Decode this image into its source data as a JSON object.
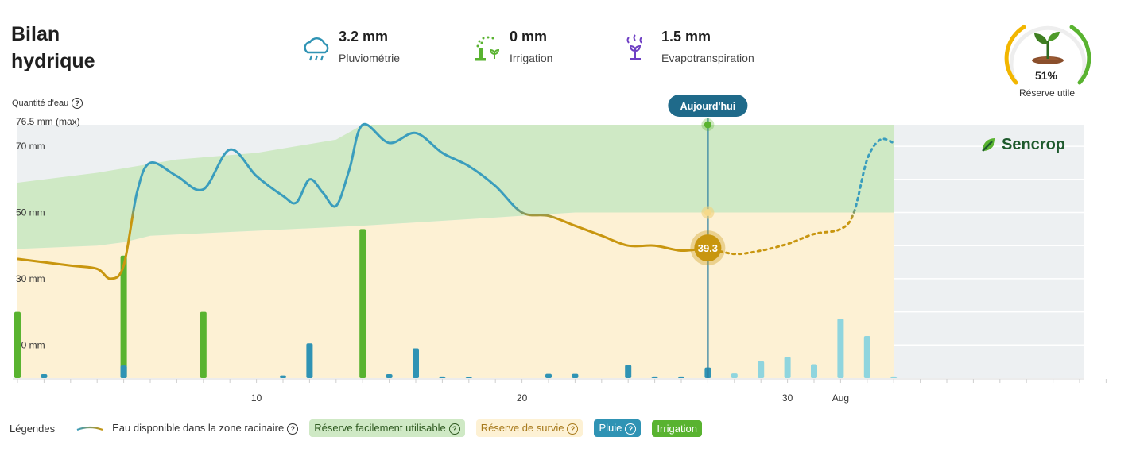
{
  "header": {
    "title": "Bilan hydrique",
    "stats": [
      {
        "icon": "rain-cloud-icon",
        "value": "3.2 mm",
        "label": "Pluviométrie"
      },
      {
        "icon": "sprinkler-icon",
        "value": "0 mm",
        "label": "Irrigation"
      },
      {
        "icon": "evapotranspiration-icon",
        "value": "1.5 mm",
        "label": "Evapotranspiration"
      }
    ]
  },
  "gauge": {
    "percent": "51%",
    "value": 0.51,
    "label": "Réserve utile",
    "icon": "plant-sprout-icon"
  },
  "brand": {
    "name": "Sencrop",
    "icon": "sencrop-leaf-icon"
  },
  "today_label": "Aujourd'hui",
  "today_value": "39.3",
  "y_axis_title": "Quantité d'eau",
  "legend": {
    "title": "Légendes",
    "items": [
      {
        "label": "Eau disponible dans la zone racinaire",
        "kind": "line"
      },
      {
        "label": "Réserve facilement utilisable",
        "kind": "pill",
        "bg": "#cfe9c5",
        "fg": "#2f5a21"
      },
      {
        "label": "Réserve de survie",
        "kind": "pill",
        "bg": "#fdf1d4",
        "fg": "#a7791b"
      },
      {
        "label": "Pluie",
        "kind": "pill",
        "bg": "#2f93b4",
        "fg": "#ffffff"
      },
      {
        "label": "Irrigation",
        "kind": "pill",
        "bg": "#59b330",
        "fg": "#ffffff"
      }
    ]
  },
  "colors": {
    "ru_zone": "#cfe9c5",
    "survival_zone": "#fdf1d4",
    "rain": "#2f93b4",
    "rain_forecast": "#8fd5de",
    "irrigation": "#59b330",
    "line_ok": "#3a9dbd",
    "line_low": "#c8960f",
    "grey_bg": "#edf0f2"
  },
  "chart_data": {
    "type": "line",
    "x_unit": "day",
    "x_range": [
      1,
      42
    ],
    "today": 27,
    "forecast_end": 34,
    "x_tick_labels": [
      {
        "x": 10,
        "label": "10"
      },
      {
        "x": 20,
        "label": "20"
      },
      {
        "x": 30,
        "label": "30"
      },
      {
        "x": 32,
        "label": "Aug"
      }
    ],
    "y_range": [
      0,
      76.5
    ],
    "y_tick_labels": [
      {
        "y": 10,
        "label": "10 mm"
      },
      {
        "y": 30,
        "label": "30 mm"
      },
      {
        "y": 50,
        "label": "50 mm"
      },
      {
        "y": 70,
        "label": "70 mm"
      },
      {
        "y": 76.5,
        "label": "76.5 mm (max)"
      }
    ],
    "survival_threshold": 50,
    "ru_upper": [
      [
        1,
        59
      ],
      [
        4,
        62
      ],
      [
        7,
        66
      ],
      [
        10,
        68
      ],
      [
        13,
        72
      ],
      [
        14,
        76.5
      ],
      [
        34,
        76.5
      ]
    ],
    "ru_lower": [
      [
        1,
        39
      ],
      [
        4,
        40
      ],
      [
        5,
        41
      ],
      [
        6,
        43
      ],
      [
        10,
        44.5
      ],
      [
        14,
        46
      ],
      [
        18,
        48
      ],
      [
        20,
        49
      ],
      [
        22,
        50
      ],
      [
        34,
        50
      ]
    ],
    "water_line_observed": [
      [
        1,
        36
      ],
      [
        3,
        34
      ],
      [
        4,
        33
      ],
      [
        4.5,
        30
      ],
      [
        5,
        34
      ],
      [
        5.5,
        56
      ],
      [
        6,
        65
      ],
      [
        7,
        61
      ],
      [
        8,
        57
      ],
      [
        9,
        69
      ],
      [
        10,
        61
      ],
      [
        11,
        55
      ],
      [
        11.5,
        53
      ],
      [
        12,
        60
      ],
      [
        12.5,
        56
      ],
      [
        13,
        52
      ],
      [
        13.5,
        63
      ],
      [
        14,
        76.5
      ],
      [
        15,
        71
      ],
      [
        16,
        74
      ],
      [
        17,
        68
      ],
      [
        18,
        64
      ],
      [
        19,
        58
      ],
      [
        20,
        50
      ],
      [
        21,
        49
      ],
      [
        22,
        46
      ],
      [
        23,
        43
      ],
      [
        24,
        40
      ],
      [
        25,
        40
      ],
      [
        26,
        38.5
      ],
      [
        27,
        39.3
      ]
    ],
    "water_line_forecast": [
      [
        27,
        39.3
      ],
      [
        28,
        37.5
      ],
      [
        29,
        38.5
      ],
      [
        30,
        40.5
      ],
      [
        31,
        43.5
      ],
      [
        32,
        45
      ],
      [
        32.5,
        50
      ],
      [
        33,
        66
      ],
      [
        33.5,
        72
      ],
      [
        34,
        71
      ]
    ],
    "rain_bars": [
      {
        "x": 2,
        "value": 1.2
      },
      {
        "x": 5,
        "value": 3.8
      },
      {
        "x": 11,
        "value": 0.8
      },
      {
        "x": 12,
        "value": 10.5
      },
      {
        "x": 15,
        "value": 1.2
      },
      {
        "x": 16,
        "value": 9
      },
      {
        "x": 17,
        "value": 0.5
      },
      {
        "x": 18,
        "value": 0.4
      },
      {
        "x": 21,
        "value": 1.3
      },
      {
        "x": 22,
        "value": 1.3
      },
      {
        "x": 24,
        "value": 4
      },
      {
        "x": 25,
        "value": 0.5
      },
      {
        "x": 26,
        "value": 0.5
      },
      {
        "x": 27,
        "value": 3.2
      }
    ],
    "rain_forecast_bars": [
      {
        "x": 28,
        "value": 1.4
      },
      {
        "x": 29,
        "value": 5.1
      },
      {
        "x": 30,
        "value": 6.4
      },
      {
        "x": 31,
        "value": 4.2
      },
      {
        "x": 32,
        "value": 18
      },
      {
        "x": 33,
        "value": 12.7
      },
      {
        "x": 34,
        "value": 0.5
      }
    ],
    "irrigation_bars": [
      {
        "x": 1,
        "value": 20
      },
      {
        "x": 5,
        "value": 37
      },
      {
        "x": 8,
        "value": 20
      },
      {
        "x": 14,
        "value": 45
      }
    ]
  }
}
